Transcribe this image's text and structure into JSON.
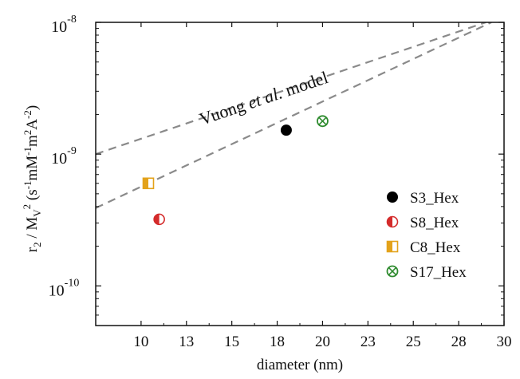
{
  "chart_data": {
    "type": "scatter",
    "xlabel": "diameter (nm)",
    "ylabel_main": "r",
    "ylabel_sub1": "2",
    "ylabel_mid": " / M",
    "ylabel_sub2": "V",
    "ylabel_sup2": "2",
    "ylabel_units": "(s-1mM-1m2A-2)",
    "x_scale": "linear",
    "y_scale": "log",
    "xlim": [
      7.5,
      30
    ],
    "ylim": [
      5e-11,
      1e-08
    ],
    "x_ticks": [
      {
        "value": 10,
        "label": "10"
      },
      {
        "value": 12.5,
        "label": "13"
      },
      {
        "value": 15,
        "label": "15"
      },
      {
        "value": 17.5,
        "label": "18"
      },
      {
        "value": 20,
        "label": "20"
      },
      {
        "value": 22.5,
        "label": "23"
      },
      {
        "value": 25,
        "label": "25"
      },
      {
        "value": 27.5,
        "label": "28"
      },
      {
        "value": 30,
        "label": "30"
      }
    ],
    "y_ticks": [
      {
        "value": 1e-10,
        "base": "10",
        "exp": "-10"
      },
      {
        "value": 1e-09,
        "base": "10",
        "exp": "-9"
      },
      {
        "value": 1e-08,
        "base": "10",
        "exp": "-8"
      }
    ],
    "grid": false,
    "legend_position": "right",
    "series": [
      {
        "name": "S3_Hex",
        "marker": "filled-circle",
        "color": "#000000",
        "points": [
          {
            "x": 18.0,
            "y": 1.52e-09
          }
        ]
      },
      {
        "name": "S8_Hex",
        "marker": "half-circle",
        "color": "#d42b2b",
        "points": [
          {
            "x": 11.0,
            "y": 3.2e-10
          }
        ]
      },
      {
        "name": "C8_Hex",
        "marker": "half-square",
        "color": "#e3a21a",
        "points": [
          {
            "x": 10.4,
            "y": 6e-10
          }
        ]
      },
      {
        "name": "S17_Hex",
        "marker": "crossed-circle",
        "color": "#2e8b2e",
        "points": [
          {
            "x": 20.0,
            "y": 1.78e-09
          }
        ]
      }
    ],
    "model_lines": [
      {
        "style": "dashed",
        "color": "#8a8a8a",
        "points": [
          {
            "x": 7.5,
            "y": 1e-09
          },
          {
            "x": 29.0,
            "y": 1e-08
          }
        ]
      },
      {
        "style": "dashed",
        "color": "#8a8a8a",
        "points": [
          {
            "x": 7.5,
            "y": 3.9e-10
          },
          {
            "x": 29.3,
            "y": 1e-08
          }
        ]
      }
    ],
    "annotation_pre": "Vuong ",
    "annotation_italic": "et al.",
    "annotation_post": " model"
  }
}
